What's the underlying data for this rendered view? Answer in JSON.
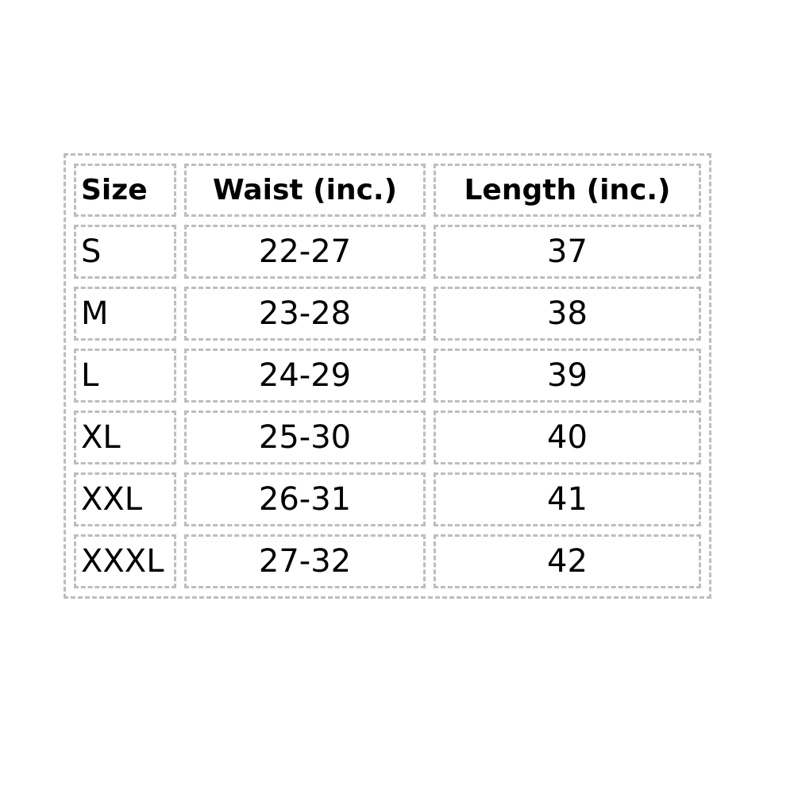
{
  "table": {
    "header": [
      "Size",
      "Waist (inc.)",
      "Length (inc.)"
    ],
    "rows": [
      [
        "S",
        "22-27",
        37
      ],
      [
        "M",
        "23-28",
        38
      ],
      [
        "L",
        "24-29",
        39
      ],
      [
        "XL",
        "25-30",
        40
      ],
      [
        "XXL",
        "26-31",
        41
      ],
      [
        "XXXL",
        "27-32",
        42
      ]
    ]
  }
}
